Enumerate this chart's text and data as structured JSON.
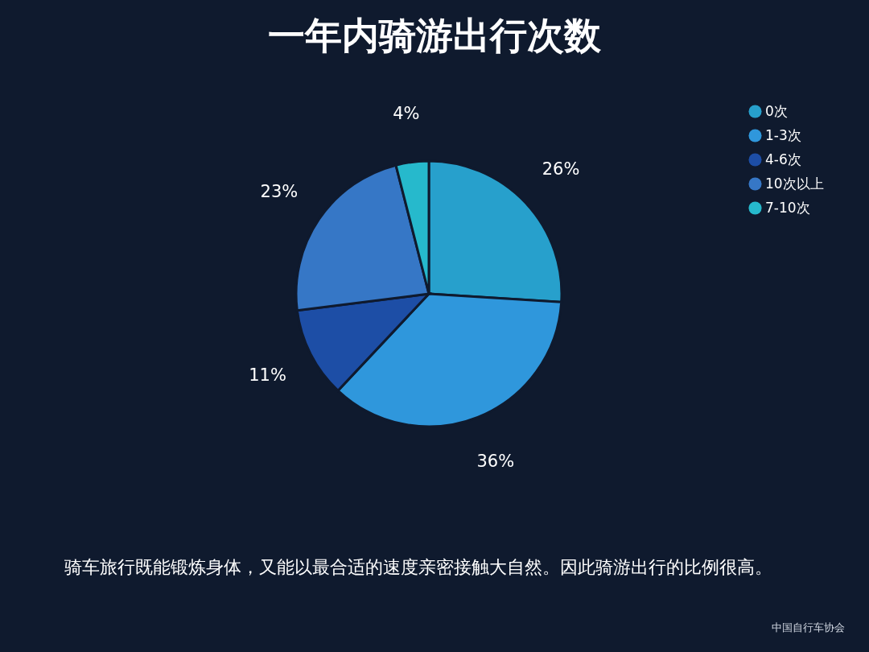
{
  "chart_data": {
    "type": "pie",
    "title": "一年内骑游出行次数",
    "categories": [
      "0次",
      "1-3次",
      "4-6次",
      "10次以上",
      "7-10次"
    ],
    "values": [
      26,
      36,
      11,
      23,
      4
    ],
    "colors": [
      "#27a0cc",
      "#2f97dc",
      "#1d4ea6",
      "#3677c6",
      "#26b9cc"
    ],
    "value_labels": [
      "26%",
      "36%",
      "11%",
      "23%",
      "4%"
    ],
    "legend": "top right",
    "annotations": [
      "骑车旅行既能锻炼身体，又能以最合适的速度亲密接触大自然。因此骑游出行的比例很高。",
      "中国自行车协会"
    ]
  }
}
